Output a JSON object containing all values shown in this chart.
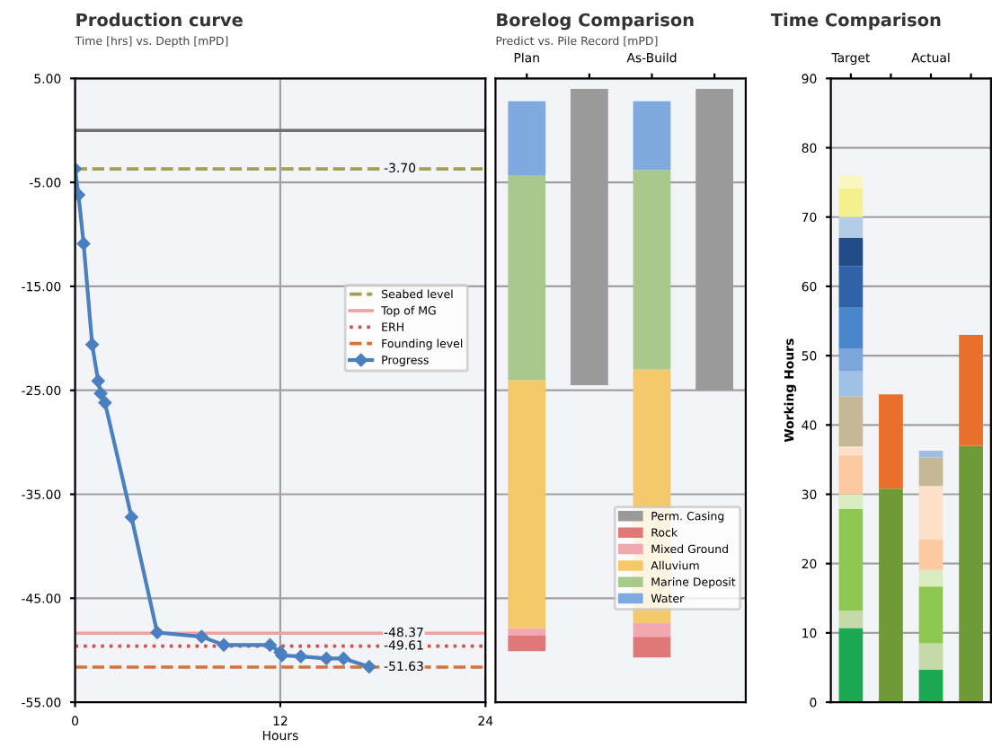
{
  "chart_data": [
    {
      "type": "line",
      "title": "Production curve",
      "subtitle": "Time [hrs] vs. Depth [mPD]",
      "xlabel": "Hours",
      "xlim": [
        0,
        24
      ],
      "xticks": [
        0,
        12,
        24
      ],
      "ylim": [
        -55,
        5
      ],
      "yticks": [
        {
          "value": 5,
          "label": "5.00"
        },
        {
          "value": -5,
          "label": "-5.00"
        },
        {
          "value": -15,
          "label": "-15.00"
        },
        {
          "value": -25,
          "label": "-25.00"
        },
        {
          "value": -35,
          "label": "-35.00"
        },
        {
          "value": -45,
          "label": "-45.00"
        },
        {
          "value": -55,
          "label": "-55.00"
        }
      ],
      "grid": true,
      "legend": "right",
      "marker": "diamond",
      "line_style": "solid",
      "series": [
        {
          "name": "Progress",
          "color": "#4a7fc0",
          "x": [
            0,
            0.2,
            0.5,
            1.0,
            1.35,
            1.5,
            1.75,
            3.3,
            4.8,
            7.4,
            8.7,
            11.4,
            12.0,
            12.1,
            13.2,
            14.7,
            15.7,
            17.2
          ],
          "values": [
            -3.7,
            -6.2,
            -10.9,
            -20.6,
            -24.1,
            -25.3,
            -26.2,
            -37.2,
            -48.3,
            -48.7,
            -49.5,
            -49.5,
            -50.2,
            -50.5,
            -50.6,
            -50.8,
            -50.8,
            -51.6
          ]
        }
      ],
      "ref_lines": [
        {
          "axis": "y",
          "value": 0,
          "color": "#707070",
          "line_style": "solid"
        },
        {
          "axis": "y",
          "value": -3.7,
          "label": "Seabed level",
          "color": "#a0a050",
          "line_style": "dashed"
        },
        {
          "axis": "y",
          "value": -48.37,
          "label": "Top of MG",
          "color": "#f0a0a0",
          "line_style": "solid"
        },
        {
          "axis": "y",
          "value": -49.61,
          "label": "ERH",
          "color": "#d05050",
          "line_style": "dotted"
        },
        {
          "axis": "y",
          "value": -51.63,
          "label": "Founding level",
          "color": "#e07030",
          "line_style": "dashed"
        }
      ],
      "annotations": [
        {
          "text": "-3.70",
          "y": -3.7
        },
        {
          "text": "-48.37",
          "y": -48.37
        },
        {
          "text": "-49.61",
          "y": -49.61
        },
        {
          "text": "-51.63",
          "y": -51.63
        }
      ]
    },
    {
      "type": "bar",
      "title": "Borelog Comparison",
      "subtitle": "Predict vs. Pile Record [mPD]",
      "categories": [
        "Plan",
        null,
        "As-Build",
        null
      ],
      "ylim": [
        -55,
        5
      ],
      "yticks": [
        5,
        -5,
        -15,
        -25,
        -35,
        -45,
        -55
      ],
      "tick_labels": "x",
      "grid": "y",
      "legend": "bottom right",
      "series": [
        {
          "name": "Perm. Casing",
          "color": "#9a9a9a",
          "base": [
            null,
            4.0,
            null,
            4.0
          ],
          "values": [
            null,
            -28.5,
            null,
            -29.0
          ]
        },
        {
          "name": "Rock",
          "color": "#e07878",
          "base": [
            -48.6,
            null,
            -48.7,
            null
          ],
          "values": [
            -1.5,
            null,
            -2.0,
            null
          ]
        },
        {
          "name": "Mixed Ground",
          "color": "#f2a8b0",
          "base": [
            -47.9,
            null,
            -47.4,
            null
          ],
          "values": [
            -0.7,
            null,
            -1.3,
            null
          ]
        },
        {
          "name": "Alluvium",
          "color": "#f5c869",
          "base": [
            -24.0,
            null,
            -23.0,
            null
          ],
          "values": [
            -23.9,
            null,
            -24.4,
            null
          ]
        },
        {
          "name": "Marine Deposit",
          "color": "#a9c98c",
          "base": [
            -4.3,
            null,
            -3.8,
            null
          ],
          "values": [
            -19.7,
            null,
            -19.2,
            null
          ]
        },
        {
          "name": "Water",
          "color": "#7eaadf",
          "base": [
            2.8,
            null,
            2.8,
            null
          ],
          "values": [
            -7.1,
            null,
            -6.6,
            null
          ]
        }
      ]
    },
    {
      "type": "bar",
      "title": "Time Comparison",
      "ylabel": "Working Hours",
      "categories": [
        "Target",
        null,
        "Actual",
        null
      ],
      "ylim": [
        0,
        90
      ],
      "yticks": [
        0,
        10,
        20,
        30,
        40,
        50,
        60,
        70,
        80,
        90
      ],
      "grid": "y",
      "stacked": true,
      "series": [
        {
          "color": "#1aa850",
          "colors": [
            "#1aa850",
            "#6f9a38",
            "#1aa850",
            "#6f9a38"
          ],
          "values": [
            10.7,
            30.8,
            4.7,
            37.0
          ]
        },
        {
          "color": "#c6d9a8",
          "colors": [
            "#c6d9a8",
            "#e8702a",
            "#c6d9a8",
            "#e8702a"
          ],
          "values": [
            2.5,
            13.6,
            3.8,
            16.0
          ]
        },
        {
          "color": "#8cc850",
          "values": [
            14.7,
            null,
            8.2,
            null
          ]
        },
        {
          "color": "#d9ecc0",
          "values": [
            2.1,
            null,
            2.4,
            null
          ]
        },
        {
          "color": "#fcc9a0",
          "values": [
            5.6,
            null,
            4.4,
            null
          ]
        },
        {
          "color": "#fde0c8",
          "values": [
            1.3,
            null,
            7.7,
            null
          ]
        },
        {
          "color": "#c4b994",
          "values": [
            7.2,
            null,
            4.1,
            null
          ]
        },
        {
          "color": "#9fc0e4",
          "values": [
            3.7,
            null,
            1.0,
            null
          ]
        },
        {
          "color": "#7aa6da",
          "values": [
            3.2,
            null,
            null,
            null
          ]
        },
        {
          "color": "#4a86cc",
          "values": [
            6.0,
            null,
            null,
            null
          ]
        },
        {
          "color": "#2f62a8",
          "values": [
            5.9,
            null,
            null,
            null
          ]
        },
        {
          "color": "#224c88",
          "values": [
            4.1,
            null,
            null,
            null
          ]
        },
        {
          "color": "#b4cce8",
          "values": [
            3.0,
            null,
            null,
            null
          ]
        },
        {
          "color": "#f4f08c",
          "values": [
            4.1,
            null,
            null,
            null
          ]
        },
        {
          "color": "#faf6c0",
          "values": [
            1.9,
            null,
            null,
            null
          ]
        }
      ]
    }
  ]
}
